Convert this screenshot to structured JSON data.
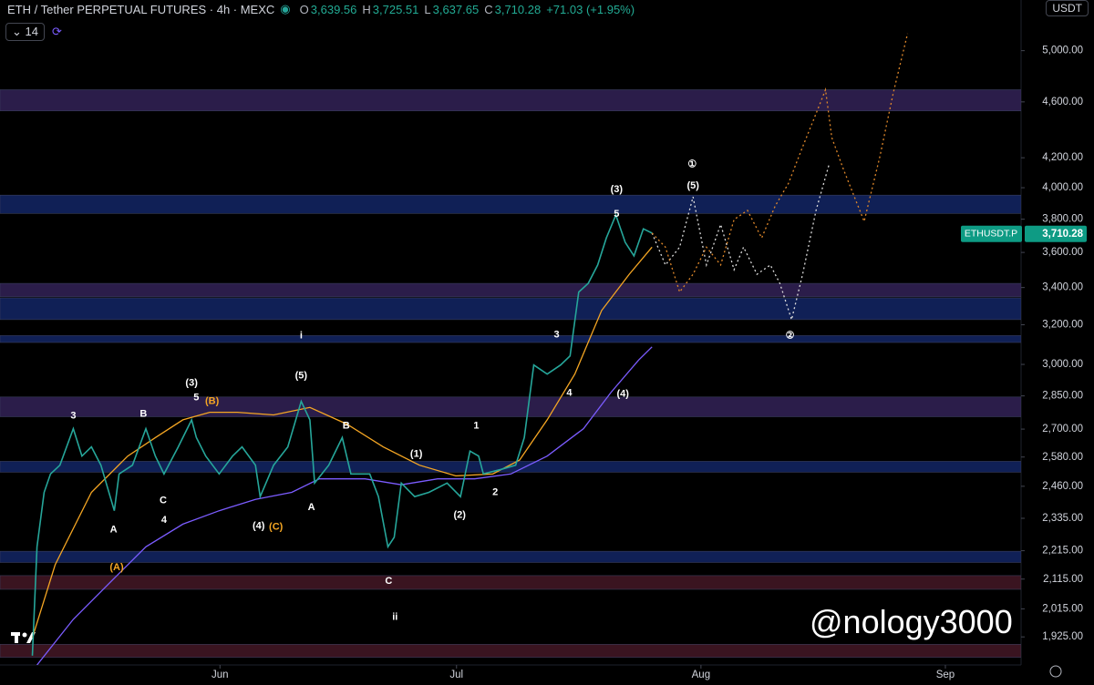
{
  "header": {
    "symbol": "ETH / Tether PERPETUAL FUTURES · 4h · MEXC",
    "ohlc": [
      {
        "key": "O",
        "value": "3,639.56"
      },
      {
        "key": "H",
        "value": "3,725.51"
      },
      {
        "key": "L",
        "value": "3,637.65"
      },
      {
        "key": "C",
        "value": "3,710.28"
      }
    ],
    "change": "+71.03 (+1.95%)",
    "indicator": "14",
    "currency": "USDT"
  },
  "watermark": "@nology3000",
  "chart_data": {
    "type": "line",
    "log_scale": true,
    "xlim": [
      -27.9,
      101.6
    ],
    "ylim": [
      1839,
      5430
    ],
    "xticks": [
      {
        "value": 0,
        "label": "Jun"
      },
      {
        "value": 30,
        "label": "Jul"
      },
      {
        "value": 61,
        "label": "Aug"
      },
      {
        "value": 92,
        "label": "Sep"
      }
    ],
    "yticks": [
      {
        "value": 5000,
        "label": "5,000.00"
      },
      {
        "value": 4600,
        "label": "4,600.00"
      },
      {
        "value": 4200,
        "label": "4,200.00"
      },
      {
        "value": 4000,
        "label": "4,000.00"
      },
      {
        "value": 3800,
        "label": "3,800.00"
      },
      {
        "value": 3600,
        "label": "3,600.00"
      },
      {
        "value": 3400,
        "label": "3,400.00"
      },
      {
        "value": 3200,
        "label": "3,200.00"
      },
      {
        "value": 3000,
        "label": "3,000.00"
      },
      {
        "value": 2850,
        "label": "2,850.00"
      },
      {
        "value": 2700,
        "label": "2,700.00"
      },
      {
        "value": 2580,
        "label": "2,580.00"
      },
      {
        "value": 2460,
        "label": "2,460.00"
      },
      {
        "value": 2335,
        "label": "2,335.00"
      },
      {
        "value": 2215,
        "label": "2,215.00"
      },
      {
        "value": 2115,
        "label": "2,115.00"
      },
      {
        "value": 2015,
        "label": "2,015.00"
      },
      {
        "value": 1925,
        "label": "1,925.00"
      }
    ],
    "series": [
      {
        "name": "ETHUSDT.P",
        "color": "#26a69a",
        "x": [
          -23.8,
          -23.2,
          -22.3,
          -21.5,
          -20.3,
          -18.6,
          -17.5,
          -16.3,
          -15.1,
          -13.4,
          -12.8,
          -11.1,
          -9.4,
          -8.2,
          -7.1,
          -5.3,
          -3.6,
          -3.0,
          -1.8,
          -0.1,
          1.6,
          2.8,
          4.5,
          5.1,
          6.8,
          8.6,
          10.3,
          11.4,
          12.0,
          13.8,
          15.5,
          16.6,
          19.0,
          20.1,
          21.3,
          22.1,
          23.0,
          24.7,
          26.5,
          28.8,
          30.5,
          31.7,
          32.8,
          33.4,
          35.7,
          37.5,
          38.6,
          39.8,
          41.5,
          43.2,
          44.4,
          45.5,
          46.7,
          47.9,
          49.0,
          50.2,
          51.4,
          52.5,
          53.7,
          54.8
        ],
        "values": [
          1867,
          2229,
          2436,
          2510,
          2546,
          2702,
          2584,
          2623,
          2546,
          2364,
          2510,
          2546,
          2702,
          2584,
          2510,
          2623,
          2741,
          2663,
          2584,
          2510,
          2584,
          2623,
          2546,
          2419,
          2546,
          2623,
          2825,
          2741,
          2473,
          2546,
          2663,
          2510,
          2510,
          2419,
          2229,
          2264,
          2473,
          2419,
          2436,
          2473,
          2419,
          2605,
          2584,
          2510,
          2529,
          2546,
          2663,
          2997,
          2953,
          2997,
          3042,
          3375,
          3423,
          3527,
          3686,
          3826,
          3660,
          3580,
          3741,
          3715
        ]
      }
    ],
    "last_price": {
      "value": 3710.28,
      "label": "3,710.28"
    },
    "indicators": [
      {
        "color": "#f5a623",
        "x": [
          -23.8,
          -20.9,
          -16.3,
          -11.7,
          -8.2,
          -4.7,
          -1.3,
          2.2,
          6.8,
          11.4,
          16.1,
          20.7,
          25.3,
          29.9,
          34.6,
          38.0,
          41.5,
          45.0,
          48.4,
          51.9,
          54.8
        ],
        "values": [
          1922,
          2165,
          2436,
          2584,
          2663,
          2741,
          2775,
          2775,
          2763,
          2797,
          2722,
          2623,
          2546,
          2502,
          2510,
          2567,
          2741,
          2953,
          3275,
          3474,
          3631
        ]
      },
      {
        "color": "#7b5cff",
        "x": [
          -23.2,
          -18.6,
          -14.0,
          -9.4,
          -4.7,
          -0.1,
          4.5,
          9.1,
          12.6,
          18.4,
          23.0,
          27.6,
          32.3,
          36.9,
          41.5,
          46.1,
          49.6,
          53.1,
          54.8
        ],
        "values": [
          1839,
          1981,
          2102,
          2229,
          2313,
          2364,
          2408,
          2436,
          2490,
          2490,
          2466,
          2490,
          2490,
          2510,
          2584,
          2702,
          2867,
          3021,
          3087
        ]
      }
    ],
    "projections": [
      {
        "color": "#dddddd",
        "x": [
          54.8,
          56.5,
          58.3,
          60.0,
          61.7,
          63.5,
          65.2,
          66.4,
          68.1,
          69.8,
          71.0,
          72.5,
          73.9,
          75.6,
          77.3
        ],
        "values": [
          3715,
          3527,
          3631,
          3941,
          3527,
          3768,
          3500,
          3631,
          3474,
          3527,
          3423,
          3227,
          3474,
          3855,
          4163
        ]
      },
      {
        "color": "#e0882a",
        "x": [
          54.8,
          56.5,
          58.3,
          60.0,
          61.7,
          63.5,
          65.2,
          66.9,
          68.7,
          70.4,
          72.1,
          73.9,
          75.3,
          76.8,
          77.6,
          79.1,
          81.7,
          83.7,
          85.4,
          87.2
        ],
        "values": [
          3715,
          3631,
          3375,
          3474,
          3631,
          3527,
          3798,
          3855,
          3686,
          3882,
          4029,
          4275,
          4469,
          4692,
          4340,
          4118,
          3786,
          4210,
          4670,
          5141
        ]
      }
    ],
    "zones": [
      {
        "low": 4533,
        "high": 4692,
        "color": "#2b1d4a"
      },
      {
        "low": 3836,
        "high": 3952,
        "color": "#102056"
      },
      {
        "low": 3349,
        "high": 3423,
        "color": "#2b1d4a"
      },
      {
        "low": 3227,
        "high": 3343,
        "color": "#102056"
      },
      {
        "low": 3109,
        "high": 3144,
        "color": "#102056"
      },
      {
        "low": 2755,
        "high": 2845,
        "color": "#2b1d4a"
      },
      {
        "low": 2517,
        "high": 2562,
        "color": "#102056"
      },
      {
        "low": 2173,
        "high": 2213,
        "color": "#102056"
      },
      {
        "low": 2080,
        "high": 2127,
        "color": "#3a1420"
      },
      {
        "low": 1862,
        "high": 1902,
        "color": "#3a1420"
      }
    ],
    "annotations": [
      {
        "text": "3",
        "x": -18.6,
        "y": 2758,
        "color": "#ffffff"
      },
      {
        "text": "B",
        "x": -9.7,
        "y": 2766,
        "color": "#ffffff"
      },
      {
        "text": "(3)",
        "x": -3.6,
        "y": 2910,
        "color": "#ffffff"
      },
      {
        "text": "5",
        "x": -3.0,
        "y": 2842,
        "color": "#ffffff"
      },
      {
        "text": "(B)",
        "x": -1.0,
        "y": 2825,
        "color": "#f5a623"
      },
      {
        "text": "(5)",
        "x": 10.3,
        "y": 2944,
        "color": "#ffffff"
      },
      {
        "text": "i",
        "x": 10.3,
        "y": 3144,
        "color": "#ffffff"
      },
      {
        "text": "B",
        "x": 16.0,
        "y": 2714,
        "color": "#ffffff"
      },
      {
        "text": "C",
        "x": -7.2,
        "y": 2404,
        "color": "#ffffff"
      },
      {
        "text": "4",
        "x": -7.1,
        "y": 2327,
        "color": "#ffffff"
      },
      {
        "text": "A",
        "x": -13.5,
        "y": 2291,
        "color": "#ffffff"
      },
      {
        "text": "(A)",
        "x": -13.1,
        "y": 2155,
        "color": "#f5a623"
      },
      {
        "text": "(4)",
        "x": 4.9,
        "y": 2306,
        "color": "#ffffff"
      },
      {
        "text": "(C)",
        "x": 7.1,
        "y": 2302,
        "color": "#f5a623"
      },
      {
        "text": "A",
        "x": 11.6,
        "y": 2376,
        "color": "#ffffff"
      },
      {
        "text": "C",
        "x": 21.4,
        "y": 2108,
        "color": "#ffffff"
      },
      {
        "text": "ii",
        "x": 22.2,
        "y": 1987,
        "color": "#ffffff"
      },
      {
        "text": "(1)",
        "x": 24.9,
        "y": 2592,
        "color": "#ffffff"
      },
      {
        "text": "1",
        "x": 32.5,
        "y": 2714,
        "color": "#ffffff"
      },
      {
        "text": "2",
        "x": 34.9,
        "y": 2436,
        "color": "#ffffff"
      },
      {
        "text": "(2)",
        "x": 30.4,
        "y": 2346,
        "color": "#ffffff"
      },
      {
        "text": "3",
        "x": 42.7,
        "y": 3147,
        "color": "#ffffff"
      },
      {
        "text": "4",
        "x": 44.3,
        "y": 2862,
        "color": "#ffffff"
      },
      {
        "text": "(4)",
        "x": 51.1,
        "y": 2858,
        "color": "#ffffff"
      },
      {
        "text": "(3)",
        "x": 50.3,
        "y": 3987,
        "color": "#ffffff"
      },
      {
        "text": "5",
        "x": 50.3,
        "y": 3832,
        "color": "#ffffff"
      },
      {
        "text": "(5)",
        "x": 60.0,
        "y": 4012,
        "color": "#ffffff"
      },
      {
        "text": "①",
        "x": 59.9,
        "y": 4155,
        "color": "#ffffff"
      },
      {
        "text": "②",
        "x": 72.3,
        "y": 3144,
        "color": "#ffffff"
      }
    ]
  }
}
